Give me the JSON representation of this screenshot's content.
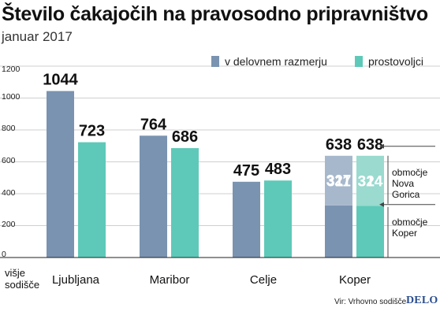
{
  "title": "Število čakajočih na pravosodno pripravništvo",
  "subtitle": "januar 2017",
  "legend": [
    {
      "label": "v delovnem razmerju",
      "color": "#7a93b0"
    },
    {
      "label": "prostovoljci",
      "color": "#5ec9b8"
    }
  ],
  "row_label": "višje sodišče",
  "source": "Vir: Vrhovno sodišče",
  "brand": "DELO",
  "chart_data": {
    "type": "bar",
    "categories": [
      "Ljubljana",
      "Maribor",
      "Celje",
      "Koper"
    ],
    "ylim": [
      0,
      1200
    ],
    "yticks": [
      0,
      200,
      400,
      600,
      800,
      1000,
      1200
    ],
    "grid": true,
    "legend_position": "top-right",
    "series": [
      {
        "name": "v delovnem razmerju",
        "values": [
          1044,
          764,
          475,
          638
        ],
        "color": "#7a93b0"
      },
      {
        "name": "prostovoljci",
        "values": [
          723,
          686,
          483,
          638
        ],
        "color": "#5ec9b8"
      }
    ],
    "koper_breakdown": {
      "segments": [
        {
          "label": "območje Koper",
          "values": [
            327,
            324
          ]
        },
        {
          "label": "območje Nova Gorica",
          "values": [
            311,
            314
          ]
        }
      ],
      "lighter_colors": [
        "#a7b8cc",
        "#9adacf"
      ]
    }
  }
}
